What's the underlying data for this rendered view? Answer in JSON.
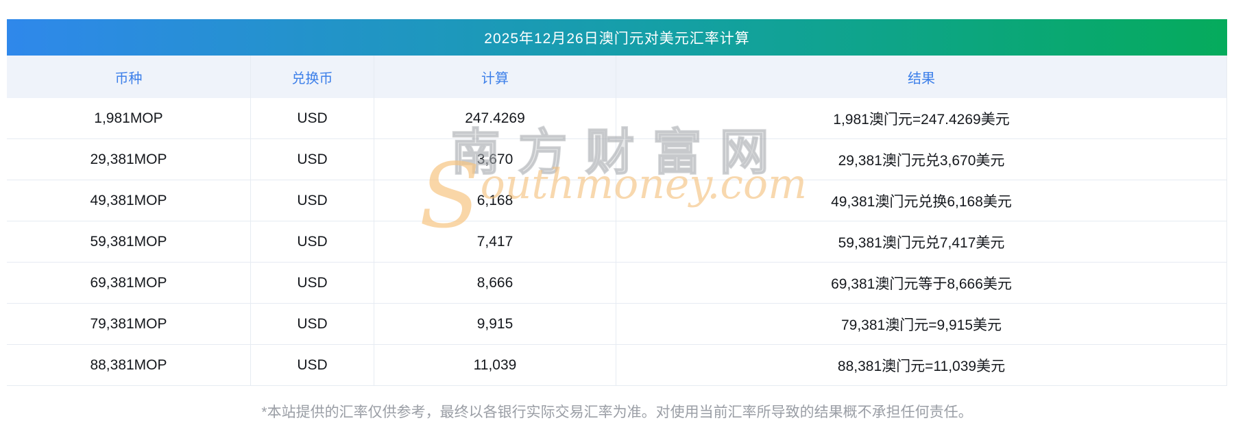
{
  "title": "2025年12月26日澳门元对美元汇率计算",
  "table": {
    "headers": {
      "currency": "币种",
      "target": "兑换币",
      "calc": "计算",
      "result": "结果"
    },
    "rows": [
      {
        "currency": "1,981MOP",
        "target": "USD",
        "calc": "247.4269",
        "result": "1,981澳门元=247.4269美元"
      },
      {
        "currency": "29,381MOP",
        "target": "USD",
        "calc": "3,670",
        "result": "29,381澳门元兑3,670美元"
      },
      {
        "currency": "49,381MOP",
        "target": "USD",
        "calc": "6,168",
        "result": "49,381澳门元兑换6,168美元"
      },
      {
        "currency": "59,381MOP",
        "target": "USD",
        "calc": "7,417",
        "result": "59,381澳门元兑7,417美元"
      },
      {
        "currency": "69,381MOP",
        "target": "USD",
        "calc": "8,666",
        "result": "69,381澳门元等于8,666美元"
      },
      {
        "currency": "79,381MOP",
        "target": "USD",
        "calc": "9,915",
        "result": "79,381澳门元=9,915美元"
      },
      {
        "currency": "88,381MOP",
        "target": "USD",
        "calc": "11,039",
        "result": "88,381澳门元=11,039美元"
      }
    ]
  },
  "watermark": {
    "cn": "南方财富网",
    "en_initial": "S",
    "en_rest": "outhmoney.com"
  },
  "footer": "*本站提供的汇率仅供参考，最终以各银行实际交易汇率为准。对使用当前汇率所导致的结果概不承担任何责任。",
  "colors": {
    "gradient_start": "#2f88eb",
    "gradient_end": "#05ab5c",
    "header_text": "#3c7fe9",
    "header_bg": "#eff3fa",
    "row_divider": "#e6ebf2",
    "watermark_orange": "#f4be78",
    "footer_text": "#9a9ea5"
  }
}
